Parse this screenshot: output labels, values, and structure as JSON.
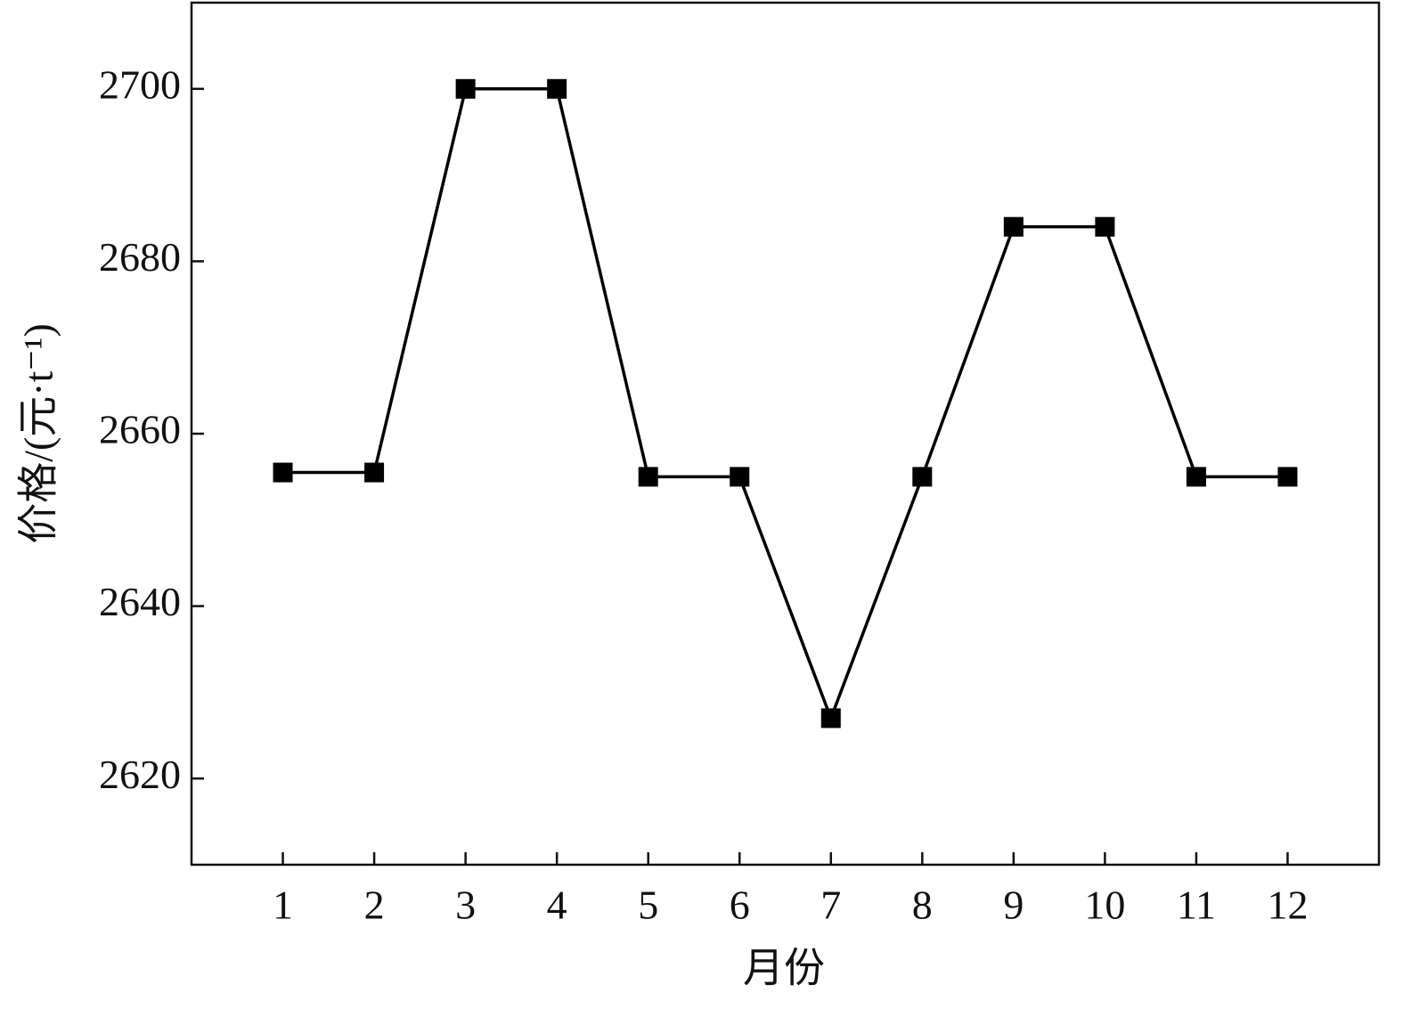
{
  "chart_data": {
    "type": "line",
    "x_label": "月份",
    "y_label": "价格/(元·t⁻¹)",
    "x": [
      1,
      2,
      3,
      4,
      5,
      6,
      7,
      8,
      9,
      10,
      11,
      12
    ],
    "series": [
      {
        "color": "#000000",
        "values": [
          2655.5,
          2655.5,
          2700,
          2700,
          2655,
          2655,
          2627,
          2655,
          2684,
          2684,
          2655,
          2655
        ]
      }
    ],
    "xlim": [
      0,
      13
    ],
    "xticks": [
      1,
      2,
      3,
      4,
      5,
      6,
      7,
      8,
      9,
      10,
      11,
      12
    ],
    "ylim": [
      2610,
      2710
    ],
    "yticks": [
      2620,
      2640,
      2660,
      2680,
      2700
    ],
    "marker": "square"
  }
}
